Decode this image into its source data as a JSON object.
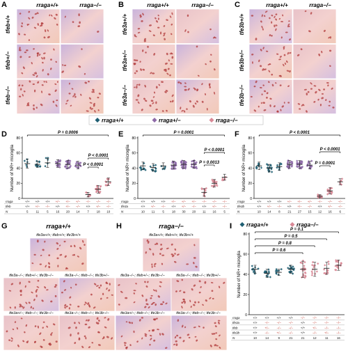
{
  "colors": {
    "wt": "#1f5f73",
    "het": "#8e6aa8",
    "mut": "#d98a97",
    "tissue_a": "#d7b8d6",
    "tissue_b": "#f0c6c6",
    "cell": "#b03a3a"
  },
  "panels": {
    "A": {
      "letter": "A",
      "col_left": "rraga+/+",
      "col_right": "rraga−/−",
      "rows": [
        "tfeb+/+",
        "tfeb+/−",
        "tfeb−/−"
      ]
    },
    "B": {
      "letter": "B",
      "col_left": "rraga+/+",
      "col_right": "rraga−/−",
      "rows": [
        "tfe3a+/+",
        "tfe3a+/−",
        "tfe3a−/−"
      ]
    },
    "C": {
      "letter": "C",
      "col_left": "rraga+/+",
      "col_right": "rraga−/−",
      "rows": [
        "tfe3b+/+",
        "tfe3b+/−",
        "tfe3b−/−"
      ]
    }
  },
  "legend": [
    "rraga+/+",
    "rraga+/−",
    "rraga−/−"
  ],
  "plots": [
    {
      "letter": "D",
      "ylabel": "Number of NR+ microglia",
      "yticks": [
        "0",
        "20",
        "40",
        "60",
        "80"
      ],
      "rows": [
        {
          "label": "rraga",
          "cells": [
            "+/+",
            "+/+",
            "+/+",
            "+/−",
            "+/−",
            "+/−",
            "−/−",
            "−/−",
            "−/−"
          ]
        },
        {
          "label": "tfeb",
          "cells": [
            "+/+",
            "+/−",
            "−/−",
            "+/+",
            "+/−",
            "−/−",
            "+/+",
            "+/−",
            "−/−"
          ]
        }
      ],
      "N": [
        "5",
        "11",
        "5",
        "16",
        "20",
        "14",
        "7",
        "18",
        "10"
      ],
      "sig": [
        {
          "text": "P = 0.0006"
        },
        {
          "text": "P < 0.0001"
        },
        {
          "text": "P < 0.0001"
        }
      ]
    },
    {
      "letter": "E",
      "ylabel": "Number of NR+ microglia",
      "yticks": [
        "0",
        "20",
        "40",
        "60",
        "80"
      ],
      "rows": [
        {
          "label": "rraga",
          "cells": [
            "+/+",
            "+/+",
            "+/+",
            "+/−",
            "+/−",
            "+/−",
            "−/−",
            "−/−",
            "−/−"
          ]
        },
        {
          "label": "tfe3a",
          "cells": [
            "+/+",
            "+/−",
            "−/−",
            "+/+",
            "+/−",
            "−/−",
            "+/+",
            "+/−",
            "−/−"
          ]
        }
      ],
      "N": [
        "10",
        "11",
        "5",
        "18",
        "30",
        "20",
        "11",
        "16",
        "5"
      ],
      "sig": [
        {
          "text": "P = 0.0001"
        },
        {
          "text": "P < 0.0001"
        },
        {
          "text": "P = 0.0013"
        }
      ]
    },
    {
      "letter": "F",
      "ylabel": "Number of NR+ microglia",
      "yticks": [
        "0",
        "20",
        "40",
        "60",
        "80"
      ],
      "rows": [
        {
          "label": "rraga",
          "cells": [
            "+/+",
            "+/+",
            "+/+",
            "+/−",
            "+/−",
            "+/−",
            "−/−",
            "−/−",
            "−/−"
          ]
        },
        {
          "label": "tfe3b",
          "cells": [
            "+/+",
            "+/−",
            "−/−",
            "+/+",
            "+/−",
            "−/−",
            "+/+",
            "+/−",
            "−/−"
          ]
        }
      ],
      "N": [
        "10",
        "14",
        "8",
        "21",
        "27",
        "15",
        "12",
        "16",
        "6"
      ],
      "sig": [
        {
          "text": "P < 0.0001"
        },
        {
          "text": "P < 0.0001"
        },
        {
          "text": "P = 0.0001"
        }
      ]
    }
  ],
  "chart_data": [
    {
      "type": "scatter",
      "panel": "D",
      "ylabel": "Number of NR+ microglia",
      "ylim": [
        0,
        80
      ],
      "categories": [
        "1",
        "2",
        "3",
        "4",
        "5",
        "6",
        "7",
        "8",
        "9"
      ],
      "genotype": [
        "wt",
        "wt",
        "wt",
        "het",
        "het",
        "het",
        "mut",
        "mut",
        "mut"
      ],
      "means": [
        46,
        45,
        47,
        46,
        45,
        44,
        5,
        12,
        22
      ],
      "sds": [
        6,
        4,
        6,
        5,
        5,
        5,
        3,
        5,
        5
      ]
    },
    {
      "type": "scatter",
      "panel": "E",
      "ylabel": "Number of NR+ microglia",
      "ylim": [
        0,
        80
      ],
      "categories": [
        "1",
        "2",
        "3",
        "4",
        "5",
        "6",
        "7",
        "8",
        "9"
      ],
      "genotype": [
        "wt",
        "wt",
        "wt",
        "het",
        "het",
        "het",
        "mut",
        "mut",
        "mut"
      ],
      "means": [
        43,
        41,
        43,
        44,
        45,
        45,
        8,
        20,
        28
      ],
      "sds": [
        5,
        5,
        4,
        5,
        5,
        5,
        5,
        5,
        4
      ]
    },
    {
      "type": "scatter",
      "panel": "F",
      "ylabel": "Number of NR+ microglia",
      "ylim": [
        0,
        80
      ],
      "categories": [
        "1",
        "2",
        "3",
        "4",
        "5",
        "6",
        "7",
        "8",
        "9"
      ],
      "genotype": [
        "wt",
        "wt",
        "wt",
        "het",
        "het",
        "het",
        "mut",
        "mut",
        "mut"
      ],
      "means": [
        43,
        40,
        42,
        45,
        45,
        44,
        3,
        10,
        22
      ],
      "sds": [
        5,
        5,
        5,
        5,
        5,
        5,
        2,
        4,
        4
      ]
    },
    {
      "type": "scatter",
      "panel": "I",
      "ylabel": "Number of NR+ microglia",
      "ylim": [
        0,
        80
      ],
      "categories": [
        "1",
        "2",
        "3",
        "4",
        "5",
        "6",
        "7",
        "8"
      ],
      "genotype": [
        "wt",
        "wt",
        "wt",
        "wt",
        "mut",
        "mut",
        "mut",
        "mut"
      ],
      "means": [
        45,
        41,
        42,
        45,
        45,
        45,
        46,
        49
      ],
      "sds": [
        4,
        4,
        3,
        4,
        8,
        7,
        6,
        5
      ]
    }
  ],
  "G": {
    "letter": "G",
    "title": "rraga+/+",
    "top": "tfe3a+/+; tfeb+/+; tfe3b+/+",
    "mid": [
      "tfe3a−/−; tfeb+/−; tfe3b−/−",
      "tfe3a−/−; tfeb−/−; tfe3b+/−"
    ],
    "bot": [
      "tfe3a+/−; tfeb−/−; tfe3b−/−",
      "tfe3a−/−; tfeb−/−; tfe3b−/−"
    ]
  },
  "H": {
    "letter": "H",
    "title": "rraga−/−",
    "top": "tfe3a+/+; tfeb+/+; tfe3b+/+",
    "mid": [
      "tfe3a−/−; tfeb+/−; tfe3b−/−",
      "tfe3a−/−; tfeb−/−; tfe3b+/−"
    ],
    "bot": [
      "tfe3a+/−; tfeb−/−; tfe3b−/−",
      "tfe3a−/−; tfeb−/−; tfe3b−/−"
    ]
  },
  "I": {
    "letter": "I",
    "legend": [
      "rraga+/+",
      "rraga−/−"
    ],
    "ylabel": "Number of NR+ microglia",
    "yticks": [
      "0",
      "20",
      "40",
      "60",
      "80"
    ],
    "rows": [
      {
        "label": "rraga",
        "cells": [
          "+/+",
          "+/+",
          "+/+",
          "+/+",
          "−/−",
          "−/−",
          "−/−",
          "−/−"
        ]
      },
      {
        "label": "tfe3a",
        "cells": [
          "+/+",
          "−/−",
          "−/−",
          "−/−",
          "+/+",
          "−/−",
          "−/−",
          "−/−"
        ]
      },
      {
        "label": "tfeb",
        "cells": [
          "+/+",
          "+/−",
          "−/−",
          "−/−",
          "+/+",
          "+/−",
          "−/−",
          "−/−"
        ]
      },
      {
        "label": "tfe3b",
        "cells": [
          "+/+",
          "−/−",
          "+/−",
          "−/−",
          "+/+",
          "−/−",
          "+/−",
          "−/−"
        ]
      }
    ],
    "N": [
      "10",
      "14",
      "9",
      "21",
      "21",
      "12",
      "11",
      "16"
    ],
    "sig": [
      {
        "text": "P = 0.1"
      },
      {
        "text": "P = 0.5"
      },
      {
        "text": "P = 0.8"
      },
      {
        "text": "P = 0.6"
      }
    ]
  }
}
